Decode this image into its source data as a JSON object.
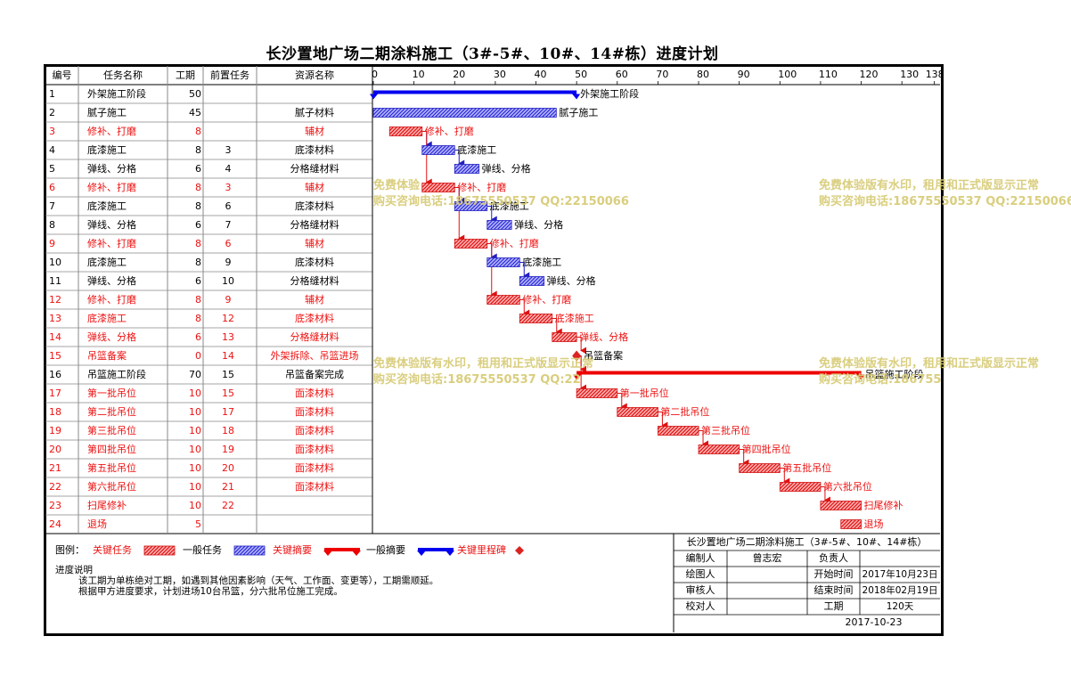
{
  "title": "长沙置地广场二期涂料施工（3#-5#、10#、14#栋）进度计划",
  "columns": {
    "id": "编号",
    "name": "任务名称",
    "duration": "工期",
    "pred": "前置任务",
    "resource": "资源名称"
  },
  "timescale": {
    "ticks": [
      "0",
      "10",
      "20",
      "30",
      "40",
      "50",
      "60",
      "70",
      "80",
      "90",
      "100",
      "110",
      "120",
      "130",
      "138"
    ],
    "max_value": 138
  },
  "colors": {
    "critical": "#ee2222",
    "normal": "#3b3be0",
    "critical_summary": "#ee0000",
    "normal_summary": "#0000ee",
    "milestone": "#dd2222",
    "watermark": "#d8cc78"
  },
  "tasks": [
    {
      "id": "1",
      "name": "外架施工阶段",
      "duration": "50",
      "pred": "",
      "resource": "",
      "type": "summary",
      "critical": false,
      "start": 0,
      "dur": 50,
      "label": "外架施工阶段"
    },
    {
      "id": "2",
      "name": "腻子施工",
      "duration": "45",
      "pred": "",
      "resource": "腻子材料",
      "type": "task",
      "critical": false,
      "start": 0,
      "dur": 45,
      "label": "腻子施工"
    },
    {
      "id": "3",
      "name": "修补、打磨",
      "duration": "8",
      "pred": "",
      "resource": "辅材",
      "type": "task",
      "critical": true,
      "start": 4,
      "dur": 8,
      "label": "修补、打磨"
    },
    {
      "id": "4",
      "name": "底漆施工",
      "duration": "8",
      "pred": "3",
      "resource": "底漆材料",
      "type": "task",
      "critical": false,
      "start": 12,
      "dur": 8,
      "label": "底漆施工"
    },
    {
      "id": "5",
      "name": "弹线、分格",
      "duration": "6",
      "pred": "4",
      "resource": "分格缝材料",
      "type": "task",
      "critical": false,
      "start": 20,
      "dur": 6,
      "label": "弹线、分格"
    },
    {
      "id": "6",
      "name": "修补、打磨",
      "duration": "8",
      "pred": "3",
      "resource": "辅材",
      "type": "task",
      "critical": true,
      "start": 12,
      "dur": 8,
      "label": "修补、打磨"
    },
    {
      "id": "7",
      "name": "底漆施工",
      "duration": "8",
      "pred": "6",
      "resource": "底漆材料",
      "type": "task",
      "critical": false,
      "start": 20,
      "dur": 8,
      "label": "底漆施工"
    },
    {
      "id": "8",
      "name": "弹线、分格",
      "duration": "6",
      "pred": "7",
      "resource": "分格缝材料",
      "type": "task",
      "critical": false,
      "start": 28,
      "dur": 6,
      "label": "弹线、分格"
    },
    {
      "id": "9",
      "name": "修补、打磨",
      "duration": "8",
      "pred": "6",
      "resource": "辅材",
      "type": "task",
      "critical": true,
      "start": 20,
      "dur": 8,
      "label": "修补、打磨"
    },
    {
      "id": "10",
      "name": "底漆施工",
      "duration": "8",
      "pred": "9",
      "resource": "底漆材料",
      "type": "task",
      "critical": false,
      "start": 28,
      "dur": 8,
      "label": "底漆施工"
    },
    {
      "id": "11",
      "name": "弹线、分格",
      "duration": "6",
      "pred": "10",
      "resource": "分格缝材料",
      "type": "task",
      "critical": false,
      "start": 36,
      "dur": 6,
      "label": "弹线、分格"
    },
    {
      "id": "12",
      "name": "修补、打磨",
      "duration": "8",
      "pred": "9",
      "resource": "辅材",
      "type": "task",
      "critical": true,
      "start": 28,
      "dur": 8,
      "label": "修补、打磨"
    },
    {
      "id": "13",
      "name": "底漆施工",
      "duration": "8",
      "pred": "12",
      "resource": "底漆材料",
      "type": "task",
      "critical": true,
      "start": 36,
      "dur": 8,
      "label": "底漆施工"
    },
    {
      "id": "14",
      "name": "弹线、分格",
      "duration": "6",
      "pred": "13",
      "resource": "分格缝材料",
      "type": "task",
      "critical": true,
      "start": 44,
      "dur": 6,
      "label": "弹线、分格"
    },
    {
      "id": "15",
      "name": "吊篮备案",
      "duration": "0",
      "pred": "14",
      "resource": "外架拆除、吊篮进场",
      "type": "milestone",
      "critical": true,
      "start": 50,
      "dur": 0,
      "label": "吊篮备案"
    },
    {
      "id": "16",
      "name": "吊篮施工阶段",
      "duration": "70",
      "pred": "15",
      "resource": "吊篮备案完成",
      "type": "summary",
      "critical": true,
      "start": 50,
      "dur": 70,
      "label": "吊篮施工阶段"
    },
    {
      "id": "17",
      "name": "第一批吊位",
      "duration": "10",
      "pred": "15",
      "resource": "面漆材料",
      "type": "task",
      "critical": true,
      "start": 50,
      "dur": 10,
      "label": "第一批吊位"
    },
    {
      "id": "18",
      "name": "第二批吊位",
      "duration": "10",
      "pred": "17",
      "resource": "面漆材料",
      "type": "task",
      "critical": true,
      "start": 60,
      "dur": 10,
      "label": "第二批吊位"
    },
    {
      "id": "19",
      "name": "第三批吊位",
      "duration": "10",
      "pred": "18",
      "resource": "面漆材料",
      "type": "task",
      "critical": true,
      "start": 70,
      "dur": 10,
      "label": "第三批吊位"
    },
    {
      "id": "20",
      "name": "第四批吊位",
      "duration": "10",
      "pred": "19",
      "resource": "面漆材料",
      "type": "task",
      "critical": true,
      "start": 80,
      "dur": 10,
      "label": "第四批吊位"
    },
    {
      "id": "21",
      "name": "第五批吊位",
      "duration": "10",
      "pred": "20",
      "resource": "面漆材料",
      "type": "task",
      "critical": true,
      "start": 90,
      "dur": 10,
      "label": "第五批吊位"
    },
    {
      "id": "22",
      "name": "第六批吊位",
      "duration": "10",
      "pred": "21",
      "resource": "面漆材料",
      "type": "task",
      "critical": true,
      "start": 100,
      "dur": 10,
      "label": "第六批吊位"
    },
    {
      "id": "23",
      "name": "扫尾修补",
      "duration": "10",
      "pred": "22",
      "resource": "",
      "type": "task",
      "critical": true,
      "start": 110,
      "dur": 10,
      "label": "扫尾修补"
    },
    {
      "id": "24",
      "name": "退场",
      "duration": "5",
      "pred": "",
      "resource": "",
      "type": "task",
      "critical": true,
      "start": 115,
      "dur": 5,
      "label": "退场"
    }
  ],
  "watermark": {
    "line1": "免费体验版有水印，租用和正式版显示正常",
    "line2": "购买咨询电话:18675550537 QQ:22150066",
    "fragments": [
      {
        "l1": "免费体验",
        "l2": "购买咨询电话:18675550537 QQ:22150066"
      },
      {
        "l1": "免费体验版有水印，租用和正式版显示正常",
        "l2": "购买咨询电话:18675550537 QQ:22150066"
      },
      {
        "l1": "免费体验版有水印，租用和正式版显示正常",
        "l2": "购买咨询电话:18675550537 QQ:22"
      },
      {
        "l1": "免费体验版有水印，租用和正式版显示正常",
        "l2": "购买咨询电话:186755"
      }
    ]
  },
  "legend": {
    "prefix": "图例：",
    "items": [
      {
        "label": "关键任务",
        "kind": "critical-task",
        "red_text": true
      },
      {
        "label": "一般任务",
        "kind": "normal-task",
        "red_text": false
      },
      {
        "label": "关键摘要",
        "kind": "critical-summary",
        "red_text": true
      },
      {
        "label": "一般摘要",
        "kind": "normal-summary",
        "red_text": false
      },
      {
        "label": "关键里程碑",
        "kind": "milestone",
        "red_text": true
      }
    ]
  },
  "notes": {
    "heading": "进度说明",
    "line1": "该工期为单栋绝对工期，如遇到其他因素影响（天气、工作面、变更等），工期需顺延。",
    "line2": "根据甲方进度要求，计划进场10台吊篮，分六批吊位施工完成。"
  },
  "titleblock": {
    "project": "长沙置地广场二期涂料施工（3#-5#、10#、14#栋）",
    "rows": [
      {
        "l": "编制人",
        "v": "曾志宏",
        "l2": "负责人",
        "v2": ""
      },
      {
        "l": "绘图人",
        "v": "",
        "l2": "开始时间",
        "v2": "2017年10月23日"
      },
      {
        "l": "审核人",
        "v": "",
        "l2": "结束时间",
        "v2": "2018年02月19日"
      },
      {
        "l": "校对人",
        "v": "",
        "l2": "工期",
        "v2": "120天"
      }
    ],
    "date": "2017-10-23"
  }
}
